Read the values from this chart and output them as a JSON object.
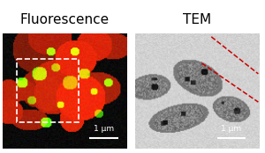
{
  "title_left": "Fluorescence",
  "title_right": "TEM",
  "title_fontsize": 11,
  "title_color": "#000000",
  "scale_bar_text": "1 μm",
  "scale_bar_color": "#ffffff",
  "fig_bg": "#ffffff",
  "dashed_rect_color": "#ffffff",
  "dashed_lines_right_color": "#cc0000"
}
